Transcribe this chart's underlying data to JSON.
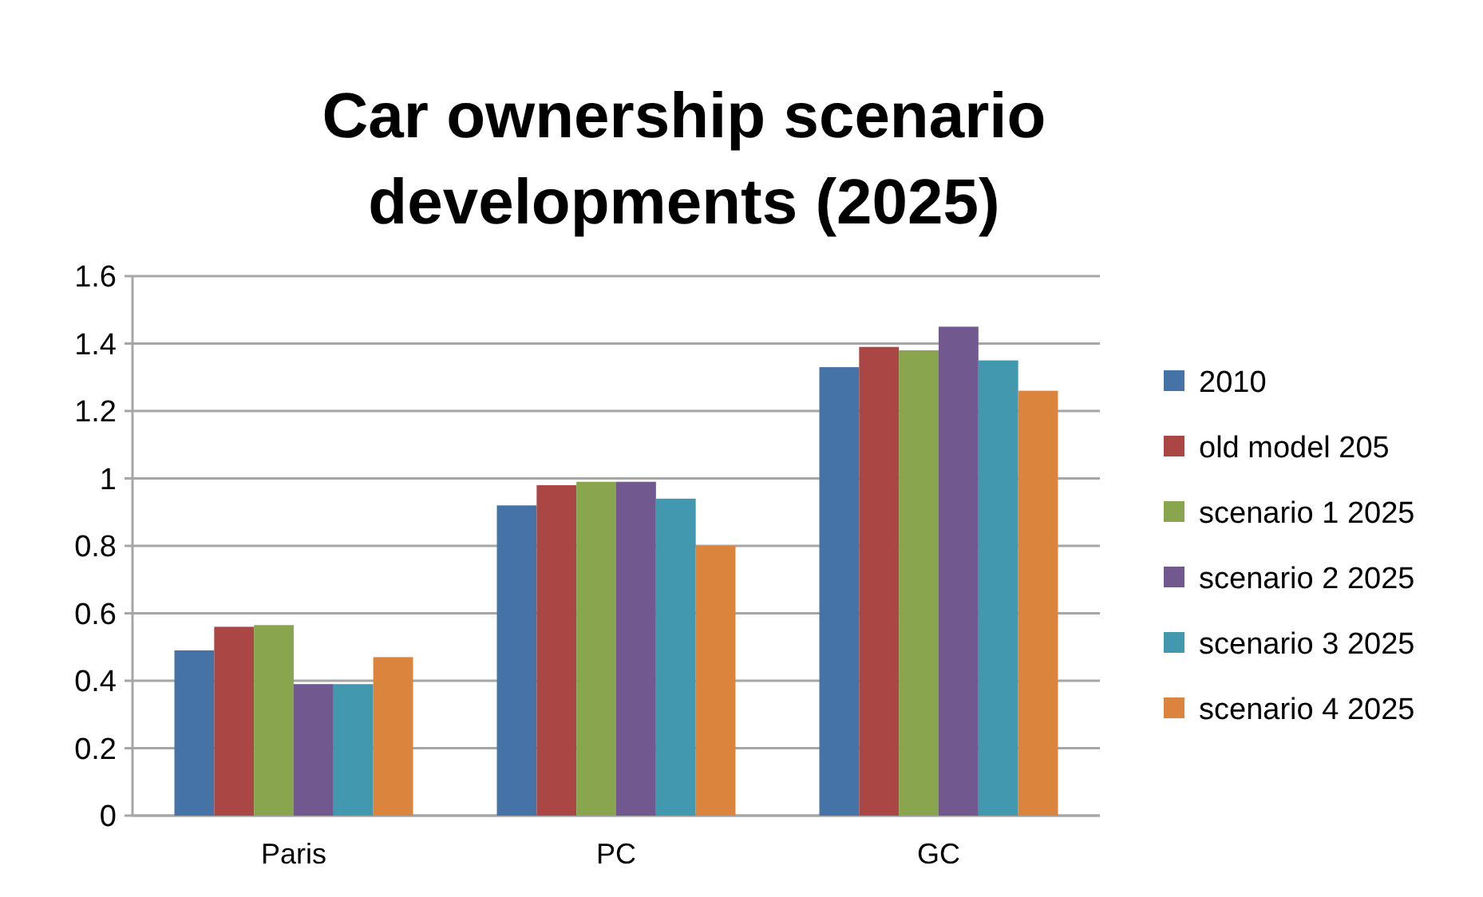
{
  "chart_data": {
    "type": "bar",
    "title": "Car ownership scenario developments (2025)",
    "categories": [
      "Paris",
      "PC",
      "GC"
    ],
    "series": [
      {
        "name": "2010",
        "color": "#4572a7",
        "values": [
          0.49,
          0.92,
          1.33
        ]
      },
      {
        "name": "old model 205",
        "color": "#aa4643",
        "values": [
          0.56,
          0.98,
          1.39
        ]
      },
      {
        "name": "scenario 1 2025",
        "color": "#89a54e",
        "values": [
          0.565,
          0.99,
          1.38
        ]
      },
      {
        "name": "scenario 2 2025",
        "color": "#71588f",
        "values": [
          0.39,
          0.99,
          1.45
        ]
      },
      {
        "name": "scenario 3 2025",
        "color": "#4198af",
        "values": [
          0.39,
          0.94,
          1.35
        ]
      },
      {
        "name": "scenario 4 2025",
        "color": "#db843d",
        "values": [
          0.47,
          0.8,
          1.26
        ]
      }
    ],
    "ylim": [
      0,
      1.6
    ],
    "yticks": [
      0,
      0.2,
      0.4,
      0.6,
      0.8,
      1,
      1.2,
      1.4,
      1.6
    ],
    "grid": "y",
    "legend": "right"
  }
}
